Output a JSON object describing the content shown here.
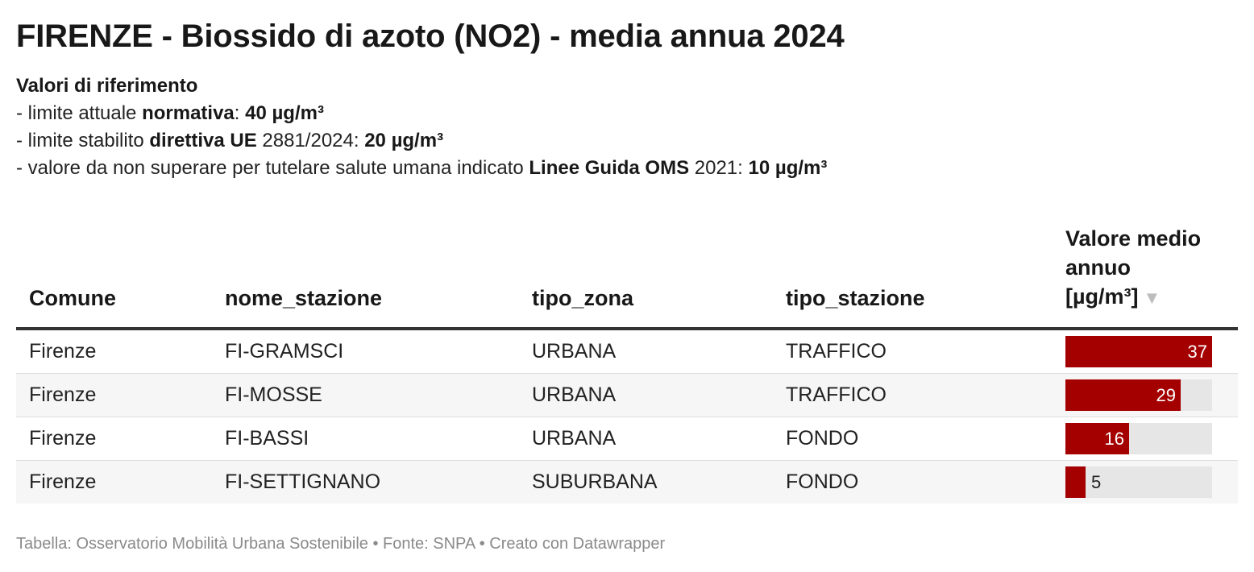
{
  "title": "FIRENZE - Biossido di azoto (NO2) - media annua 2024",
  "description": {
    "heading": "Valori di riferimento",
    "lines": [
      [
        {
          "t": "- limite attuale ",
          "b": false
        },
        {
          "t": "normativa",
          "b": true
        },
        {
          "t": ": ",
          "b": false
        },
        {
          "t": "40 µg/m³",
          "b": true
        }
      ],
      [
        {
          "t": "- limite stabilito ",
          "b": false
        },
        {
          "t": "direttiva UE",
          "b": true
        },
        {
          "t": " 2881/2024: ",
          "b": false
        },
        {
          "t": "20 µg/m³",
          "b": true
        }
      ],
      [
        {
          "t": "- valore da non superare per tutelare salute umana indicato ",
          "b": false
        },
        {
          "t": "Linee Guida OMS",
          "b": true
        },
        {
          "t": " 2021: ",
          "b": false
        },
        {
          "t": "10 µg/m³",
          "b": true
        }
      ]
    ]
  },
  "chart_data": {
    "type": "table",
    "columns": [
      "Comune",
      "nome_stazione",
      "tipo_zona",
      "tipo_stazione",
      "Valore medio annuo [µg/m³]"
    ],
    "sort": {
      "column": "Valore medio annuo [µg/m³]",
      "direction": "descending"
    },
    "bar_max": 37,
    "bar_color": "#a50000",
    "bar_track_color": "#e6e6e6",
    "rows": [
      {
        "comune": "Firenze",
        "nome_stazione": "FI-GRAMSCI",
        "tipo_zona": "URBANA",
        "tipo_stazione": "TRAFFICO",
        "valore": 37
      },
      {
        "comune": "Firenze",
        "nome_stazione": "FI-MOSSE",
        "tipo_zona": "URBANA",
        "tipo_stazione": "TRAFFICO",
        "valore": 29
      },
      {
        "comune": "Firenze",
        "nome_stazione": "FI-BASSI",
        "tipo_zona": "URBANA",
        "tipo_stazione": "FONDO",
        "valore": 16
      },
      {
        "comune": "Firenze",
        "nome_stazione": "FI-SETTIGNANO",
        "tipo_zona": "SUBURBANA",
        "tipo_stazione": "FONDO",
        "valore": 5
      }
    ]
  },
  "footer": "Tabella: Osservatorio Mobilità Urbana Sostenibile • Fonte: SNPA • Creato con Datawrapper"
}
